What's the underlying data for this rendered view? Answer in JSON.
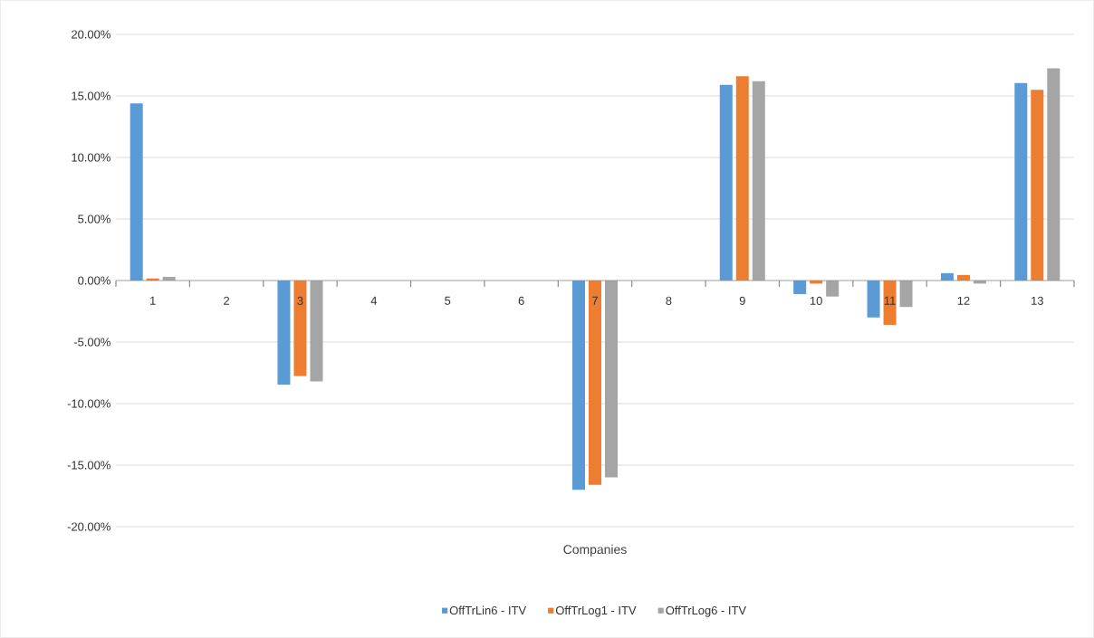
{
  "chart_data": {
    "type": "bar",
    "xlabel": "Companies",
    "categories": [
      "1",
      "2",
      "3",
      "4",
      "5",
      "6",
      "7",
      "8",
      "9",
      "10",
      "11",
      "12",
      "13"
    ],
    "series": [
      {
        "name": "OffTrLin6 - ITV",
        "color": "#5b9bd5",
        "values": [
          14.4,
          0,
          -8.45,
          0,
          0,
          0,
          -17.0,
          0,
          15.9,
          -1.1,
          -3.0,
          0.6,
          16.05
        ]
      },
      {
        "name": "OffTrLog1 - ITV",
        "color": "#ed7d31",
        "values": [
          0.17,
          0,
          -7.75,
          0,
          0,
          0,
          -16.6,
          0,
          16.6,
          -0.25,
          -3.6,
          0.45,
          15.5
        ]
      },
      {
        "name": "OffTrLog6 - ITV",
        "color": "#a5a5a5",
        "values": [
          0.3,
          0,
          -8.2,
          0,
          0,
          0,
          -16.0,
          0,
          16.2,
          -1.3,
          -2.15,
          -0.25,
          17.25
        ]
      }
    ],
    "ylim": [
      -20,
      20
    ],
    "yticks": [
      {
        "value": -20,
        "label": "-20.00%"
      },
      {
        "value": -15,
        "label": "-15.00%"
      },
      {
        "value": -10,
        "label": "-10.00%"
      },
      {
        "value": -5,
        "label": "-5.00%"
      },
      {
        "value": 0,
        "label": "0.00%"
      },
      {
        "value": 5,
        "label": "5.00%"
      },
      {
        "value": 10,
        "label": "10.00%"
      },
      {
        "value": 15,
        "label": "15.00%"
      },
      {
        "value": 20,
        "label": "20.00%"
      }
    ],
    "grid": "y",
    "legend": "bottom"
  }
}
